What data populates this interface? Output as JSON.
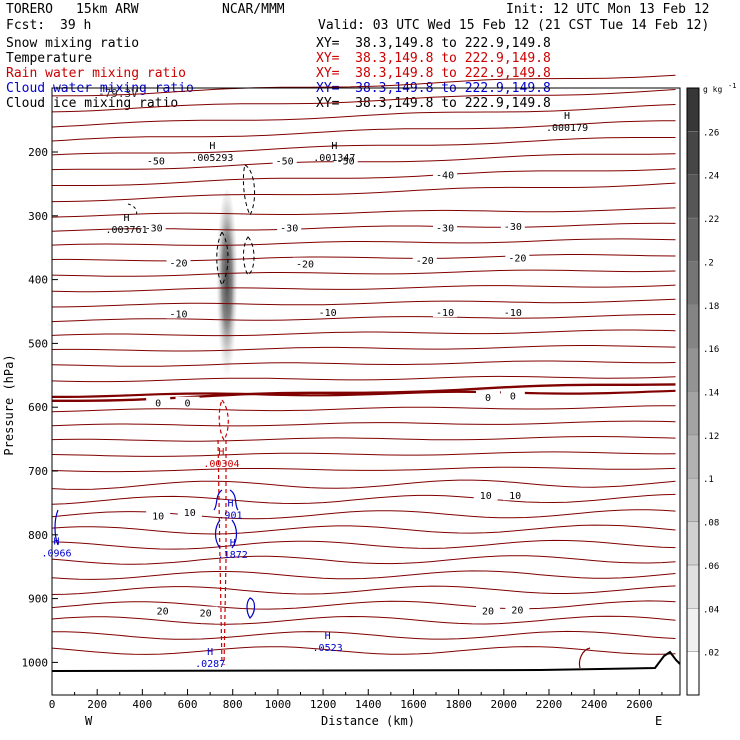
{
  "header": {
    "model": "TORERO",
    "resolution": "15km ARW",
    "source": "NCAR/MMM",
    "init": "Init: 12 UTC Mon 13 Feb 12",
    "fcst_label": "Fcst:",
    "fcst_value": "39 h",
    "valid": "Valid: 03 UTC Wed 15 Feb 12 (21 CST Tue 14 Feb 12)",
    "ghost_fields": "-79.3V"
  },
  "fields": [
    {
      "label": "Snow mixing ratio",
      "xy": "XY=  38.3,149.8 to 222.9,149.8",
      "color": "#000000",
      "xy_color": "#000000"
    },
    {
      "label": "Temperature",
      "xy": "XY=  38.3,149.8 to 222.9,149.8",
      "color": "#000000",
      "xy_color": "#cc0000"
    },
    {
      "label": "Rain water mixing ratio",
      "xy": "XY=  38.3,149.8 to 222.9,149.8",
      "color": "#cc0000",
      "xy_color": "#cc0000"
    },
    {
      "label": "Cloud water mixing ratio",
      "xy": "XY=  38.3,149.8 to 222.9,149.8",
      "color": "#0000cc",
      "xy_color": "#0000cc"
    },
    {
      "label": "Cloud ice mixing ratio",
      "xy": "XY=  38.3,149.8 to 222.9,149.8",
      "color": "#000000",
      "xy_color": "#000000"
    }
  ],
  "chart_data": {
    "type": "contour-cross-section",
    "xlabel": "Distance (km)",
    "ylabel": "Pressure (hPa)",
    "x_ticks": [
      0,
      200,
      400,
      600,
      800,
      1000,
      1200,
      1400,
      1600,
      1800,
      2000,
      2200,
      2400,
      2600
    ],
    "xlim": [
      0,
      2780
    ],
    "y_ticks": [
      200,
      300,
      400,
      500,
      600,
      700,
      800,
      900,
      1000
    ],
    "ylim": [
      100,
      1025
    ],
    "x_end_labels": {
      "left": "W",
      "right": "E"
    },
    "colorbar": {
      "unit": "g kg",
      "unit_exp": "-1",
      "ticks": [
        ".02",
        ".04",
        ".06",
        ".08",
        ".1",
        ".12",
        ".14",
        ".16",
        ".18",
        ".2",
        ".22",
        ".24",
        ".26"
      ]
    },
    "temperature_labels": [
      {
        "text": "-50",
        "x": 460,
        "p": 213
      },
      {
        "text": "-50",
        "x": 1030,
        "p": 213
      },
      {
        "text": "-50",
        "x": 1300,
        "p": 213
      },
      {
        "text": "-40",
        "x": 1740,
        "p": 235
      },
      {
        "text": "-30",
        "x": 450,
        "p": 318
      },
      {
        "text": "-30",
        "x": 1050,
        "p": 318
      },
      {
        "text": "-30",
        "x": 1740,
        "p": 318
      },
      {
        "text": "-30",
        "x": 2040,
        "p": 316
      },
      {
        "text": "-20",
        "x": 560,
        "p": 373
      },
      {
        "text": "-20",
        "x": 1120,
        "p": 375
      },
      {
        "text": "-20",
        "x": 1650,
        "p": 369
      },
      {
        "text": "-20",
        "x": 2060,
        "p": 365
      },
      {
        "text": "-10",
        "x": 560,
        "p": 453
      },
      {
        "text": "-10",
        "x": 1220,
        "p": 451
      },
      {
        "text": "-10",
        "x": 1740,
        "p": 451
      },
      {
        "text": "-10",
        "x": 2040,
        "p": 451
      },
      {
        "text": "0",
        "x": 470,
        "p": 593
      },
      {
        "text": "0",
        "x": 600,
        "p": 593
      },
      {
        "text": "0",
        "x": 1930,
        "p": 584
      },
      {
        "text": "0",
        "x": 2040,
        "p": 582
      },
      {
        "text": "10",
        "x": 470,
        "p": 770
      },
      {
        "text": "10",
        "x": 610,
        "p": 764
      },
      {
        "text": "10",
        "x": 1920,
        "p": 738
      },
      {
        "text": "10",
        "x": 2050,
        "p": 738
      },
      {
        "text": "20",
        "x": 490,
        "p": 919
      },
      {
        "text": "20",
        "x": 680,
        "p": 922
      },
      {
        "text": "20",
        "x": 1930,
        "p": 919
      },
      {
        "text": "20",
        "x": 2060,
        "p": 917
      }
    ],
    "maxima": [
      {
        "text": ".005293",
        "x": 710,
        "p": 200,
        "color": "#000000"
      },
      {
        "text": ".001347",
        "x": 1250,
        "p": 200,
        "color": "#000000"
      },
      {
        "text": ".000179",
        "x": 2280,
        "p": 153,
        "color": "#000000"
      },
      {
        "text": ".003761",
        "x": 330,
        "p": 313,
        "color": "#000000"
      },
      {
        "text": ".00304",
        "x": 750,
        "p": 680,
        "color": "#cc0000"
      },
      {
        "text": ".901",
        "x": 790,
        "p": 760,
        "color": "#0000cc"
      },
      {
        "text": ".1872",
        "x": 800,
        "p": 822,
        "color": "#0000cc"
      },
      {
        "text": ".0966",
        "x": 20,
        "p": 820,
        "color": "#0000cc"
      },
      {
        "text": ".0287",
        "x": 700,
        "p": 993,
        "color": "#0000cc"
      },
      {
        "text": ".0523",
        "x": 1220,
        "p": 968,
        "color": "#0000cc"
      }
    ]
  }
}
